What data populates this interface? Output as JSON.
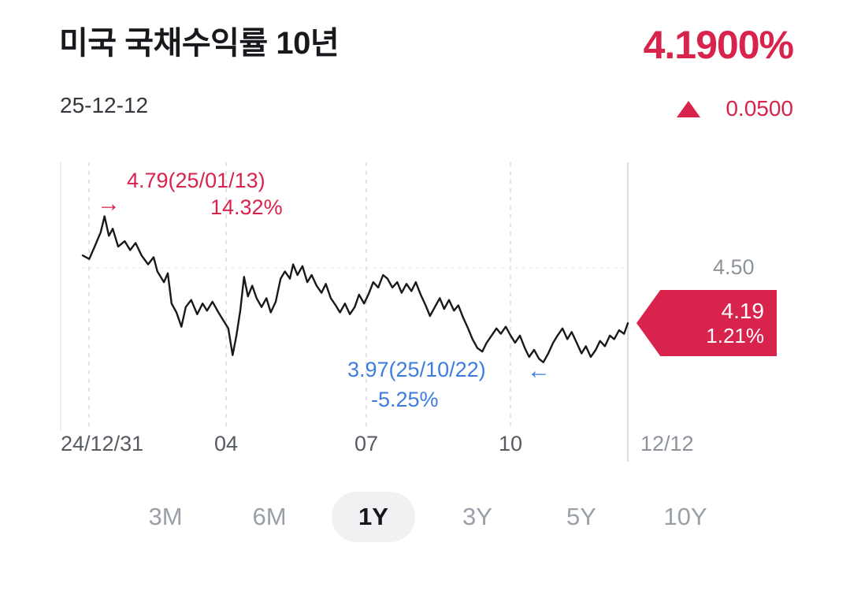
{
  "header": {
    "title": "미국 국채수익률 10년",
    "date": "25-12-12",
    "current_value": "4.1900%",
    "change_value": "0.0500",
    "change_direction": "up"
  },
  "chart": {
    "high_annotation": {
      "label": "4.79(25/01/13)",
      "percent": "14.32%",
      "arrow": "→"
    },
    "low_annotation": {
      "label": "3.97(25/10/22)",
      "percent": "-5.25%",
      "arrow": "←"
    },
    "axis_right_label": "4.50",
    "last_tag": {
      "value": "4.19",
      "percent": "1.21%"
    },
    "x_labels": [
      "24/12/31",
      "04",
      "07",
      "10",
      "12/12"
    ]
  },
  "periods": {
    "items": [
      {
        "label": "3M",
        "selected": false
      },
      {
        "label": "6M",
        "selected": false
      },
      {
        "label": "1Y",
        "selected": true
      },
      {
        "label": "3Y",
        "selected": false
      },
      {
        "label": "5Y",
        "selected": false
      },
      {
        "label": "10Y",
        "selected": false
      }
    ]
  },
  "colors": {
    "accent_red": "#d8234d",
    "accent_blue": "#3c7ce0",
    "line_black": "#17191d",
    "muted_gray": "#8d939b"
  },
  "chart_data": {
    "type": "line",
    "title": "미국 국채수익률 10년 (1Y)",
    "x_axis": {
      "tick_labels": [
        "24/12/31",
        "04",
        "07",
        "10",
        "12/12"
      ]
    },
    "y_axis": {
      "gridline_value": 4.5,
      "approx_range": [
        3.9,
        4.85
      ]
    },
    "high": {
      "value": 4.79,
      "date": "25/01/13",
      "change_pct": "14.32%"
    },
    "low": {
      "value": 3.97,
      "date": "25/10/22",
      "change_pct": "-5.25%"
    },
    "last": {
      "value": 4.19,
      "change_pct": "1.21%"
    },
    "points": [
      [
        0.0,
        4.57
      ],
      [
        0.012,
        4.55
      ],
      [
        0.022,
        4.62
      ],
      [
        0.033,
        4.7
      ],
      [
        0.04,
        4.79
      ],
      [
        0.048,
        4.68
      ],
      [
        0.055,
        4.72
      ],
      [
        0.065,
        4.62
      ],
      [
        0.077,
        4.65
      ],
      [
        0.087,
        4.6
      ],
      [
        0.097,
        4.64
      ],
      [
        0.108,
        4.57
      ],
      [
        0.12,
        4.52
      ],
      [
        0.13,
        4.56
      ],
      [
        0.137,
        4.48
      ],
      [
        0.149,
        4.42
      ],
      [
        0.156,
        4.47
      ],
      [
        0.163,
        4.3
      ],
      [
        0.172,
        4.25
      ],
      [
        0.181,
        4.17
      ],
      [
        0.189,
        4.28
      ],
      [
        0.199,
        4.32
      ],
      [
        0.21,
        4.24
      ],
      [
        0.22,
        4.3
      ],
      [
        0.228,
        4.26
      ],
      [
        0.238,
        4.31
      ],
      [
        0.249,
        4.25
      ],
      [
        0.257,
        4.21
      ],
      [
        0.267,
        4.16
      ],
      [
        0.275,
        4.01
      ],
      [
        0.282,
        4.12
      ],
      [
        0.289,
        4.26
      ],
      [
        0.296,
        4.45
      ],
      [
        0.303,
        4.34
      ],
      [
        0.311,
        4.4
      ],
      [
        0.319,
        4.33
      ],
      [
        0.328,
        4.28
      ],
      [
        0.337,
        4.33
      ],
      [
        0.345,
        4.25
      ],
      [
        0.354,
        4.31
      ],
      [
        0.363,
        4.44
      ],
      [
        0.371,
        4.48
      ],
      [
        0.38,
        4.44
      ],
      [
        0.386,
        4.52
      ],
      [
        0.394,
        4.46
      ],
      [
        0.403,
        4.51
      ],
      [
        0.412,
        4.42
      ],
      [
        0.42,
        4.46
      ],
      [
        0.429,
        4.4
      ],
      [
        0.438,
        4.36
      ],
      [
        0.446,
        4.41
      ],
      [
        0.455,
        4.33
      ],
      [
        0.464,
        4.29
      ],
      [
        0.472,
        4.25
      ],
      [
        0.481,
        4.3
      ],
      [
        0.49,
        4.24
      ],
      [
        0.499,
        4.28
      ],
      [
        0.507,
        4.35
      ],
      [
        0.516,
        4.3
      ],
      [
        0.524,
        4.35
      ],
      [
        0.533,
        4.42
      ],
      [
        0.542,
        4.39
      ],
      [
        0.551,
        4.46
      ],
      [
        0.559,
        4.44
      ],
      [
        0.568,
        4.39
      ],
      [
        0.577,
        4.42
      ],
      [
        0.585,
        4.36
      ],
      [
        0.594,
        4.41
      ],
      [
        0.603,
        4.37
      ],
      [
        0.611,
        4.42
      ],
      [
        0.62,
        4.35
      ],
      [
        0.629,
        4.29
      ],
      [
        0.637,
        4.23
      ],
      [
        0.646,
        4.28
      ],
      [
        0.655,
        4.33
      ],
      [
        0.663,
        4.27
      ],
      [
        0.672,
        4.32
      ],
      [
        0.681,
        4.26
      ],
      [
        0.689,
        4.29
      ],
      [
        0.698,
        4.22
      ],
      [
        0.707,
        4.16
      ],
      [
        0.715,
        4.1
      ],
      [
        0.724,
        4.05
      ],
      [
        0.733,
        4.03
      ],
      [
        0.741,
        4.08
      ],
      [
        0.75,
        4.12
      ],
      [
        0.759,
        4.16
      ],
      [
        0.767,
        4.13
      ],
      [
        0.776,
        4.17
      ],
      [
        0.785,
        4.12
      ],
      [
        0.793,
        4.08
      ],
      [
        0.802,
        4.12
      ],
      [
        0.811,
        4.05
      ],
      [
        0.819,
        4.0
      ],
      [
        0.828,
        4.04
      ],
      [
        0.837,
        3.99
      ],
      [
        0.845,
        3.97
      ],
      [
        0.854,
        4.02
      ],
      [
        0.863,
        4.08
      ],
      [
        0.871,
        4.12
      ],
      [
        0.88,
        4.16
      ],
      [
        0.889,
        4.1
      ],
      [
        0.897,
        4.14
      ],
      [
        0.906,
        4.08
      ],
      [
        0.915,
        4.02
      ],
      [
        0.923,
        4.06
      ],
      [
        0.932,
        4.0
      ],
      [
        0.941,
        4.04
      ],
      [
        0.949,
        4.09
      ],
      [
        0.958,
        4.06
      ],
      [
        0.967,
        4.12
      ],
      [
        0.975,
        4.1
      ],
      [
        0.984,
        4.15
      ],
      [
        0.993,
        4.13
      ],
      [
        1.0,
        4.19
      ]
    ]
  }
}
